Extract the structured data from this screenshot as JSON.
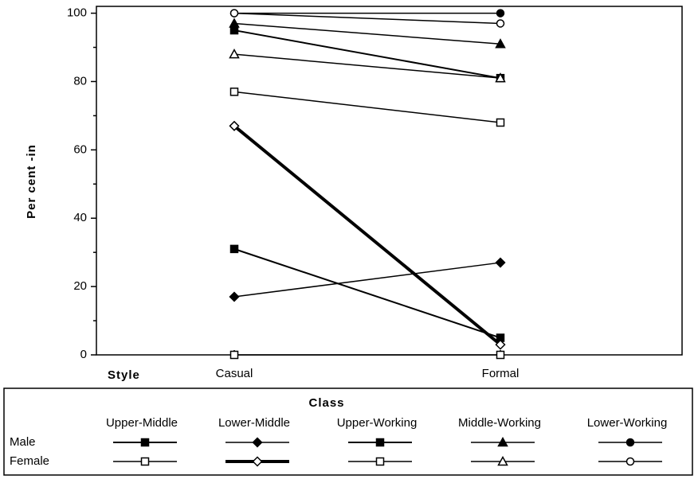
{
  "chart_data": {
    "type": "line",
    "y_label": "Per cent  -in",
    "x_label": "Style",
    "categories": [
      "Casual",
      "Formal"
    ],
    "ylim": [
      0,
      102
    ],
    "yticks": [
      0,
      20,
      40,
      60,
      80,
      100
    ],
    "legend": {
      "title": "Class",
      "rows": [
        "Male",
        "Female"
      ]
    },
    "classes": [
      {
        "name": "Upper-Middle",
        "series": [
          {
            "values": [
              31,
              5
            ],
            "color": "#000",
            "marker": "square",
            "filled": true,
            "line_width": 2
          },
          {
            "values": [
              0,
              0
            ],
            "color": "#000",
            "marker": "square",
            "filled": false,
            "line_width": 1.5
          }
        ]
      },
      {
        "name": "Lower-Middle",
        "series": [
          {
            "values": [
              17,
              27
            ],
            "color": "#000",
            "marker": "diamond",
            "filled": true,
            "line_width": 1.5
          },
          {
            "values": [
              67,
              3
            ],
            "color": "#000",
            "marker": "diamond",
            "filled": false,
            "line_width": 4
          }
        ]
      },
      {
        "name": "Upper-Working",
        "series": [
          {
            "values": [
              95,
              81
            ],
            "color": "#000",
            "marker": "square",
            "filled": true,
            "line_width": 2
          },
          {
            "values": [
              77,
              68
            ],
            "color": "#000",
            "marker": "square",
            "filled": false,
            "line_width": 1.5
          }
        ]
      },
      {
        "name": "Middle-Working",
        "series": [
          {
            "values": [
              97,
              91
            ],
            "color": "#000",
            "marker": "triangle",
            "filled": true,
            "line_width": 1.5
          },
          {
            "values": [
              88,
              81
            ],
            "color": "#000",
            "marker": "triangle",
            "filled": false,
            "line_width": 1.5
          }
        ]
      },
      {
        "name": "Lower-Working",
        "series": [
          {
            "values": [
              100,
              100
            ],
            "color": "#000",
            "marker": "circle",
            "filled": true,
            "line_width": 1.5
          },
          {
            "values": [
              100,
              97
            ],
            "color": "#000",
            "marker": "circle",
            "filled": false,
            "line_width": 1.5
          }
        ]
      }
    ]
  }
}
